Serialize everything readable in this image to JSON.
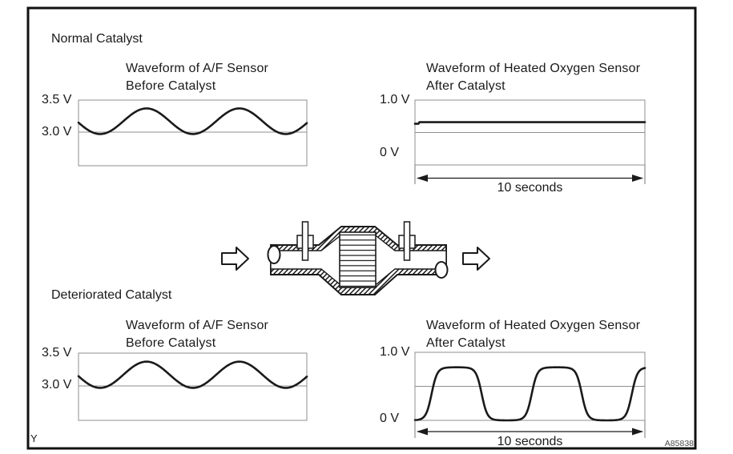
{
  "figure": {
    "heading_normal": "Normal Catalyst",
    "heading_deteriorated": "Deteriorated Catalyst",
    "corner_label": "Y",
    "figure_code": "A85838"
  },
  "colors": {
    "ink": "#1a1a1a",
    "grid": "#8f8f8f",
    "background": "#ffffff"
  },
  "chart_data": [
    {
      "id": "af-sensor-normal",
      "type": "line",
      "title_line1": "Waveform of A/F Sensor",
      "title_line2": "Before Catalyst",
      "y_ticks": [
        {
          "label": "3.5 V",
          "v": 3.5
        },
        {
          "label": "3.0 V",
          "v": 3.0
        }
      ],
      "y_range": [
        2.475,
        3.5
      ],
      "ref_lines_v": [
        3.0
      ],
      "waveform": {
        "shape": "sine",
        "center_v": 3.17,
        "amplitude_v": 0.2,
        "cycles": 2.46,
        "phase_deg": -173.8,
        "squash": 0
      },
      "x_label": null
    },
    {
      "id": "o2-sensor-normal",
      "type": "line",
      "title_line1": "Waveform of Heated Oxygen Sensor",
      "title_line2": "After Catalyst",
      "y_ticks": [
        {
          "label": "1.0 V",
          "v": 1.0
        },
        {
          "label": "0 V",
          "v": 0.0,
          "label_v": 0.19
        }
      ],
      "y_range": [
        0,
        1.0
      ],
      "ref_lines_v": [
        0.5
      ],
      "waveform": {
        "shape": "flat",
        "value_v": 0.66,
        "start_v": 0.635
      },
      "x_label": "10 seconds",
      "x_span_seconds": 10
    },
    {
      "id": "af-sensor-deteriorated",
      "type": "line",
      "title_line1": "Waveform of A/F Sensor",
      "title_line2": "Before Catalyst",
      "y_ticks": [
        {
          "label": "3.5 V",
          "v": 3.5
        },
        {
          "label": "3.0 V",
          "v": 3.0
        }
      ],
      "y_range": [
        2.475,
        3.5
      ],
      "ref_lines_v": [
        3.0
      ],
      "waveform": {
        "shape": "sine",
        "center_v": 3.17,
        "amplitude_v": 0.2,
        "cycles": 2.46,
        "phase_deg": -173.8,
        "squash": 0
      },
      "x_label": null
    },
    {
      "id": "o2-sensor-deteriorated",
      "type": "line",
      "title_line1": "Waveform of Heated Oxygen Sensor",
      "title_line2": "After Catalyst",
      "y_ticks": [
        {
          "label": "1.0 V",
          "v": 1.0
        },
        {
          "label": "0 V",
          "v": 0.0,
          "label_v": 0.0
        }
      ],
      "y_range": [
        0,
        1.0
      ],
      "ref_lines_v": [
        0.5
      ],
      "waveform": {
        "shape": "squashed_sine",
        "center_v": 0.39,
        "amplitude_v": 0.39,
        "cycles": 2.296,
        "phase_deg": -59.8,
        "squash": 2.8
      },
      "x_label": "10 seconds",
      "x_span_seconds": 10
    }
  ]
}
